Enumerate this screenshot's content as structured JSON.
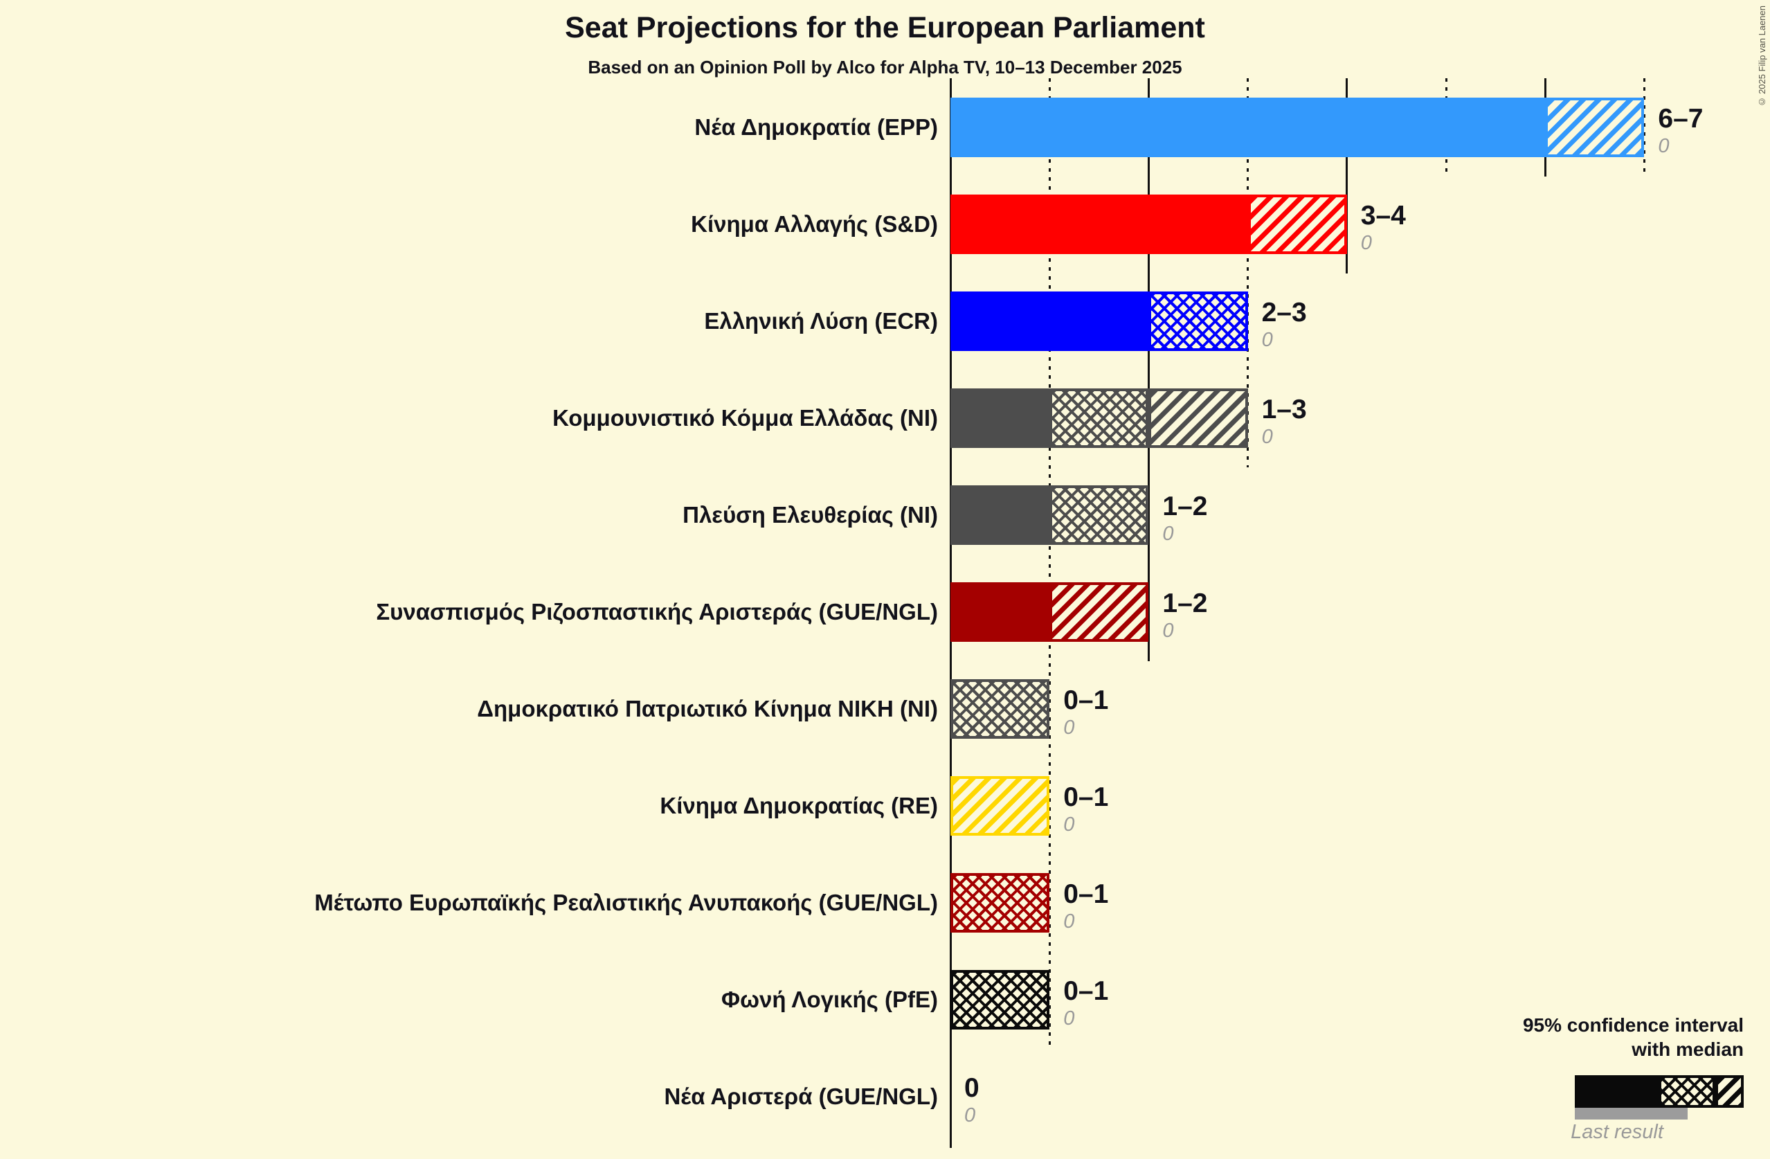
{
  "title": "Seat Projections for the European Parliament",
  "subtitle": "Based on an Opinion Poll by Alco for Alpha TV, 10–13 December 2025",
  "copyright": "© 2025 Filip van Laenen",
  "legend": {
    "ci_line1": "95% confidence interval",
    "ci_line2": "with median",
    "last_result": "Last result"
  },
  "colors": {
    "background": "#FCF9DC",
    "text": "#12121A",
    "muted": "#999999",
    "last_result_bar": "#9C9C9C",
    "gridline": "#121212"
  },
  "chart_data": {
    "type": "bar",
    "orientation": "horizontal",
    "title": "Seat Projections for the European Parliament",
    "subtitle": "Based on an Opinion Poll by Alco for Alpha TV, 10–13 December 2025",
    "unit": "seats",
    "x_axis": {
      "min": 0,
      "max": 7,
      "solid_ticks": [
        0,
        2,
        4,
        6
      ],
      "dotted_ticks": [
        1,
        3,
        5,
        7
      ],
      "grid": "on"
    },
    "legend_note": "95% confidence interval with median; solid = lower bound, crosshatch = lower-to-median, diagonal = median-to-upper; gray underbar = last result",
    "rows": [
      {
        "party": "Νέα Δημοκρατία (EPP)",
        "low": 6,
        "median": 6,
        "high": 7,
        "last_result": 0,
        "ci_label": "6–7",
        "last_label": "0",
        "color": "#3399FC"
      },
      {
        "party": "Κίνημα Αλλαγής (S&D)",
        "low": 3,
        "median": 3,
        "high": 4,
        "last_result": 0,
        "ci_label": "3–4",
        "last_label": "0",
        "color": "#FF0000"
      },
      {
        "party": "Ελληνική Λύση (ECR)",
        "low": 2,
        "median": 3,
        "high": 3,
        "last_result": 0,
        "ci_label": "2–3",
        "last_label": "0",
        "color": "#0000FF"
      },
      {
        "party": "Κομμουνιστικό Κόμμα Ελλάδας (NI)",
        "low": 1,
        "median": 2,
        "high": 3,
        "last_result": 0,
        "ci_label": "1–3",
        "last_label": "0",
        "color": "#4D4D4D"
      },
      {
        "party": "Πλεύση Ελευθερίας (NI)",
        "low": 1,
        "median": 2,
        "high": 2,
        "last_result": 0,
        "ci_label": "1–2",
        "last_label": "0",
        "color": "#4D4D4D"
      },
      {
        "party": "Συνασπισμός Ριζοσπαστικής Αριστεράς (GUE/NGL)",
        "low": 1,
        "median": 1,
        "high": 2,
        "last_result": 0,
        "ci_label": "1–2",
        "last_label": "0",
        "color": "#A40000"
      },
      {
        "party": "Δημοκρατικό Πατριωτικό Κίνημα ΝΙΚΗ (NI)",
        "low": 0,
        "median": 1,
        "high": 1,
        "last_result": 0,
        "ci_label": "0–1",
        "last_label": "0",
        "color": "#4D4D4D"
      },
      {
        "party": "Κίνημα Δημοκρατίας (RE)",
        "low": 0,
        "median": 0,
        "high": 1,
        "last_result": 0,
        "ci_label": "0–1",
        "last_label": "0",
        "color": "#FFD700"
      },
      {
        "party": "Μέτωπο Ευρωπαϊκής Ρεαλιστικής Ανυπακοής (GUE/NGL)",
        "low": 0,
        "median": 1,
        "high": 1,
        "last_result": 0,
        "ci_label": "0–1",
        "last_label": "0",
        "color": "#A40000"
      },
      {
        "party": "Φωνή Λογικής (PfE)",
        "low": 0,
        "median": 1,
        "high": 1,
        "last_result": 0,
        "ci_label": "0–1",
        "last_label": "0",
        "color": "#0A0A0A"
      },
      {
        "party": "Νέα Αριστερά (GUE/NGL)",
        "low": 0,
        "median": 0,
        "high": 0,
        "last_result": 0,
        "ci_label": "0",
        "last_label": "0",
        "color": "#A40000"
      }
    ]
  }
}
